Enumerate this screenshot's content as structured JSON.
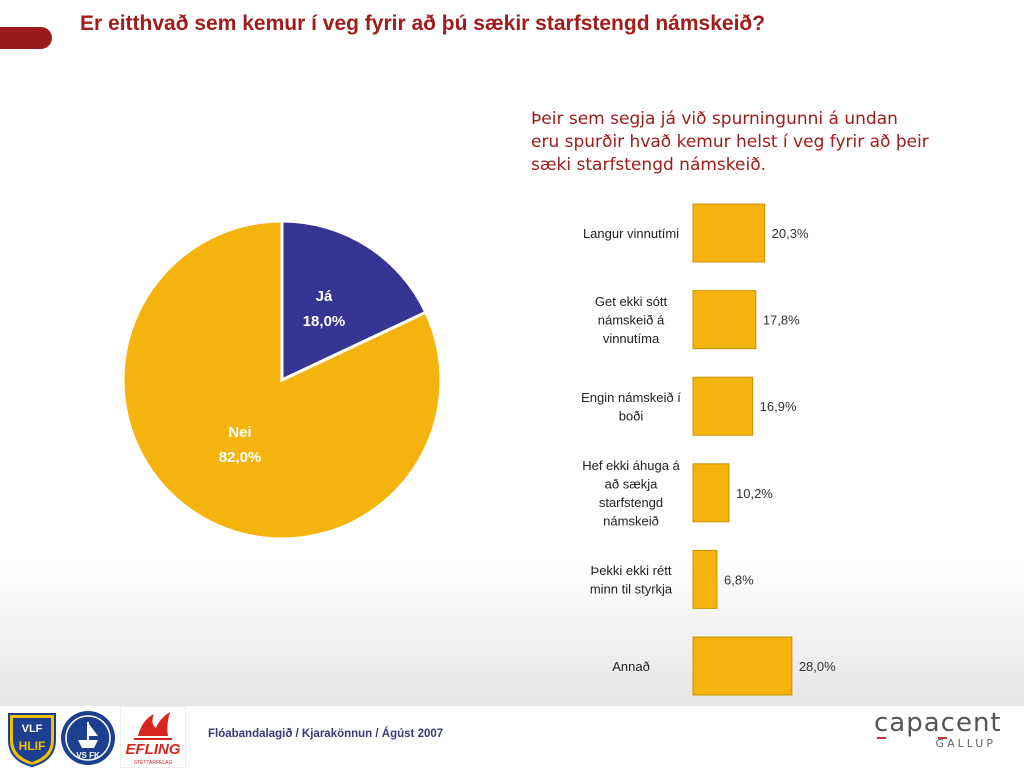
{
  "title": "Er eitthvað sem kemur í veg fyrir að þú sækir starfstengd námskeið?",
  "note": "Þeir sem segja já við spurningunni á undan eru spurðir hvað kemur helst í veg fyrir að þeir sæki starfstengd námskeið.",
  "footer": {
    "text": "Flóabandalagið  / Kjarakönnun / Ágúst 2007",
    "logos": {
      "vlf": "VLF",
      "hlif": "HLIF",
      "vsfk": "VS FK",
      "efling": "EFLING",
      "efling_sub": "STÉTTARFÉLAG",
      "capacent": "capacent",
      "gallup": "GALLUP"
    }
  },
  "colors": {
    "title": "#a01c1c",
    "pie_yes": "#353594",
    "pie_no": "#f5b30e",
    "bar": "#f5b30e"
  },
  "chart_data": [
    {
      "type": "pie",
      "title": "",
      "slices": [
        {
          "label": "Já",
          "value": 18.0,
          "value_label": "18,0%",
          "color": "#353594"
        },
        {
          "label": "Nei",
          "value": 82.0,
          "value_label": "82,0%",
          "color": "#f5b30e"
        }
      ]
    },
    {
      "type": "bar",
      "orientation": "horizontal",
      "title": "",
      "categories": [
        [
          "Langur vinnutími"
        ],
        [
          "Get ekki sótt",
          "námskeið á",
          "vinnutíma"
        ],
        [
          "Engin námskeið í",
          "boði"
        ],
        [
          "Hef ekki áhuga á",
          "að sækja",
          "starfstengd",
          "námskeið"
        ],
        [
          "Þekki ekki rétt",
          "minn til styrkja"
        ],
        [
          "Annað"
        ]
      ],
      "values": [
        20.3,
        17.8,
        16.9,
        10.2,
        6.8,
        28.0
      ],
      "value_labels": [
        "20,3%",
        "17,8%",
        "16,9%",
        "10,2%",
        "6,8%",
        "28,0%"
      ],
      "xlim": [
        0,
        100
      ],
      "color": "#f5b30e"
    }
  ]
}
